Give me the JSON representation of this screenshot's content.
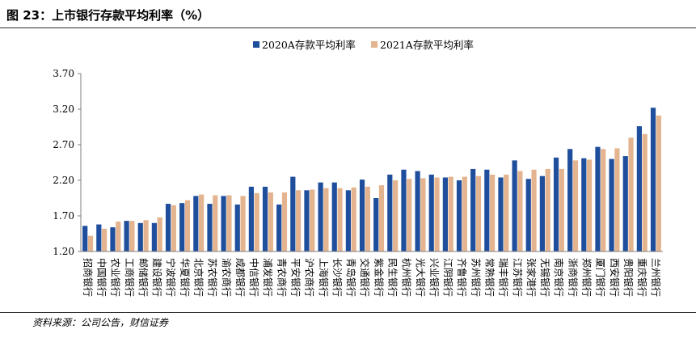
{
  "figure": {
    "title": "图 23：上市银行存款平均利率（%）",
    "source": "资料来源：公司公告，财信证券"
  },
  "colors": {
    "series_2020": "#1f4e9c",
    "series_2021": "#e3b48f",
    "axis": "#7f7f7f",
    "rule": "#2b2b2b"
  },
  "chart_data": {
    "type": "bar",
    "title": "",
    "xlabel": "",
    "ylabel": "",
    "ylim": [
      1.2,
      3.7
    ],
    "yticks": [
      "1.20",
      "1.70",
      "2.20",
      "2.70",
      "3.20",
      "3.70"
    ],
    "grid": false,
    "legend_position": "top-center",
    "categories": [
      "招商银行",
      "中国银行",
      "农业银行",
      "工商银行",
      "邮储银行",
      "建设银行",
      "宁波银行",
      "华夏银行",
      "北京银行",
      "苏农银行",
      "渝农商行",
      "成都银行",
      "中信银行",
      "浦发银行",
      "青农商行",
      "平安银行",
      "沪农商行",
      "上海银行",
      "长沙银行",
      "青岛银行",
      "交通银行",
      "紫金银行",
      "民生银行",
      "杭州银行",
      "光大银行",
      "兴业银行",
      "江阴银行",
      "齐鲁银行",
      "苏州银行",
      "常熟银行",
      "瑞丰银行",
      "江苏银行",
      "张家港行",
      "无锡银行",
      "南京银行",
      "浙商银行",
      "郑州银行",
      "厦门银行",
      "西安银行",
      "贵阳银行",
      "重庆银行",
      "兰州银行"
    ],
    "series": [
      {
        "name": "2020A存款平均利率",
        "values": [
          1.56,
          1.58,
          1.54,
          1.63,
          1.6,
          1.6,
          1.87,
          1.88,
          1.98,
          1.87,
          1.98,
          1.86,
          2.11,
          2.11,
          1.86,
          2.25,
          2.06,
          2.17,
          2.17,
          2.06,
          2.21,
          1.95,
          2.28,
          2.35,
          2.33,
          2.28,
          2.24,
          2.2,
          2.36,
          2.35,
          2.24,
          2.48,
          2.22,
          2.26,
          2.52,
          2.64,
          2.51,
          2.67,
          2.5,
          2.54,
          2.96,
          3.22
        ]
      },
      {
        "name": "2021A存款平均利率",
        "values": [
          1.42,
          1.52,
          1.62,
          1.63,
          1.64,
          1.68,
          1.85,
          1.92,
          2.0,
          1.99,
          1.99,
          1.98,
          2.02,
          2.03,
          2.03,
          2.06,
          2.07,
          2.09,
          2.09,
          2.1,
          2.11,
          2.13,
          2.2,
          2.22,
          2.23,
          2.24,
          2.25,
          2.25,
          2.26,
          2.28,
          2.28,
          2.33,
          2.35,
          2.36,
          2.36,
          2.48,
          2.49,
          2.64,
          2.65,
          2.8,
          2.85,
          3.11
        ]
      }
    ]
  }
}
